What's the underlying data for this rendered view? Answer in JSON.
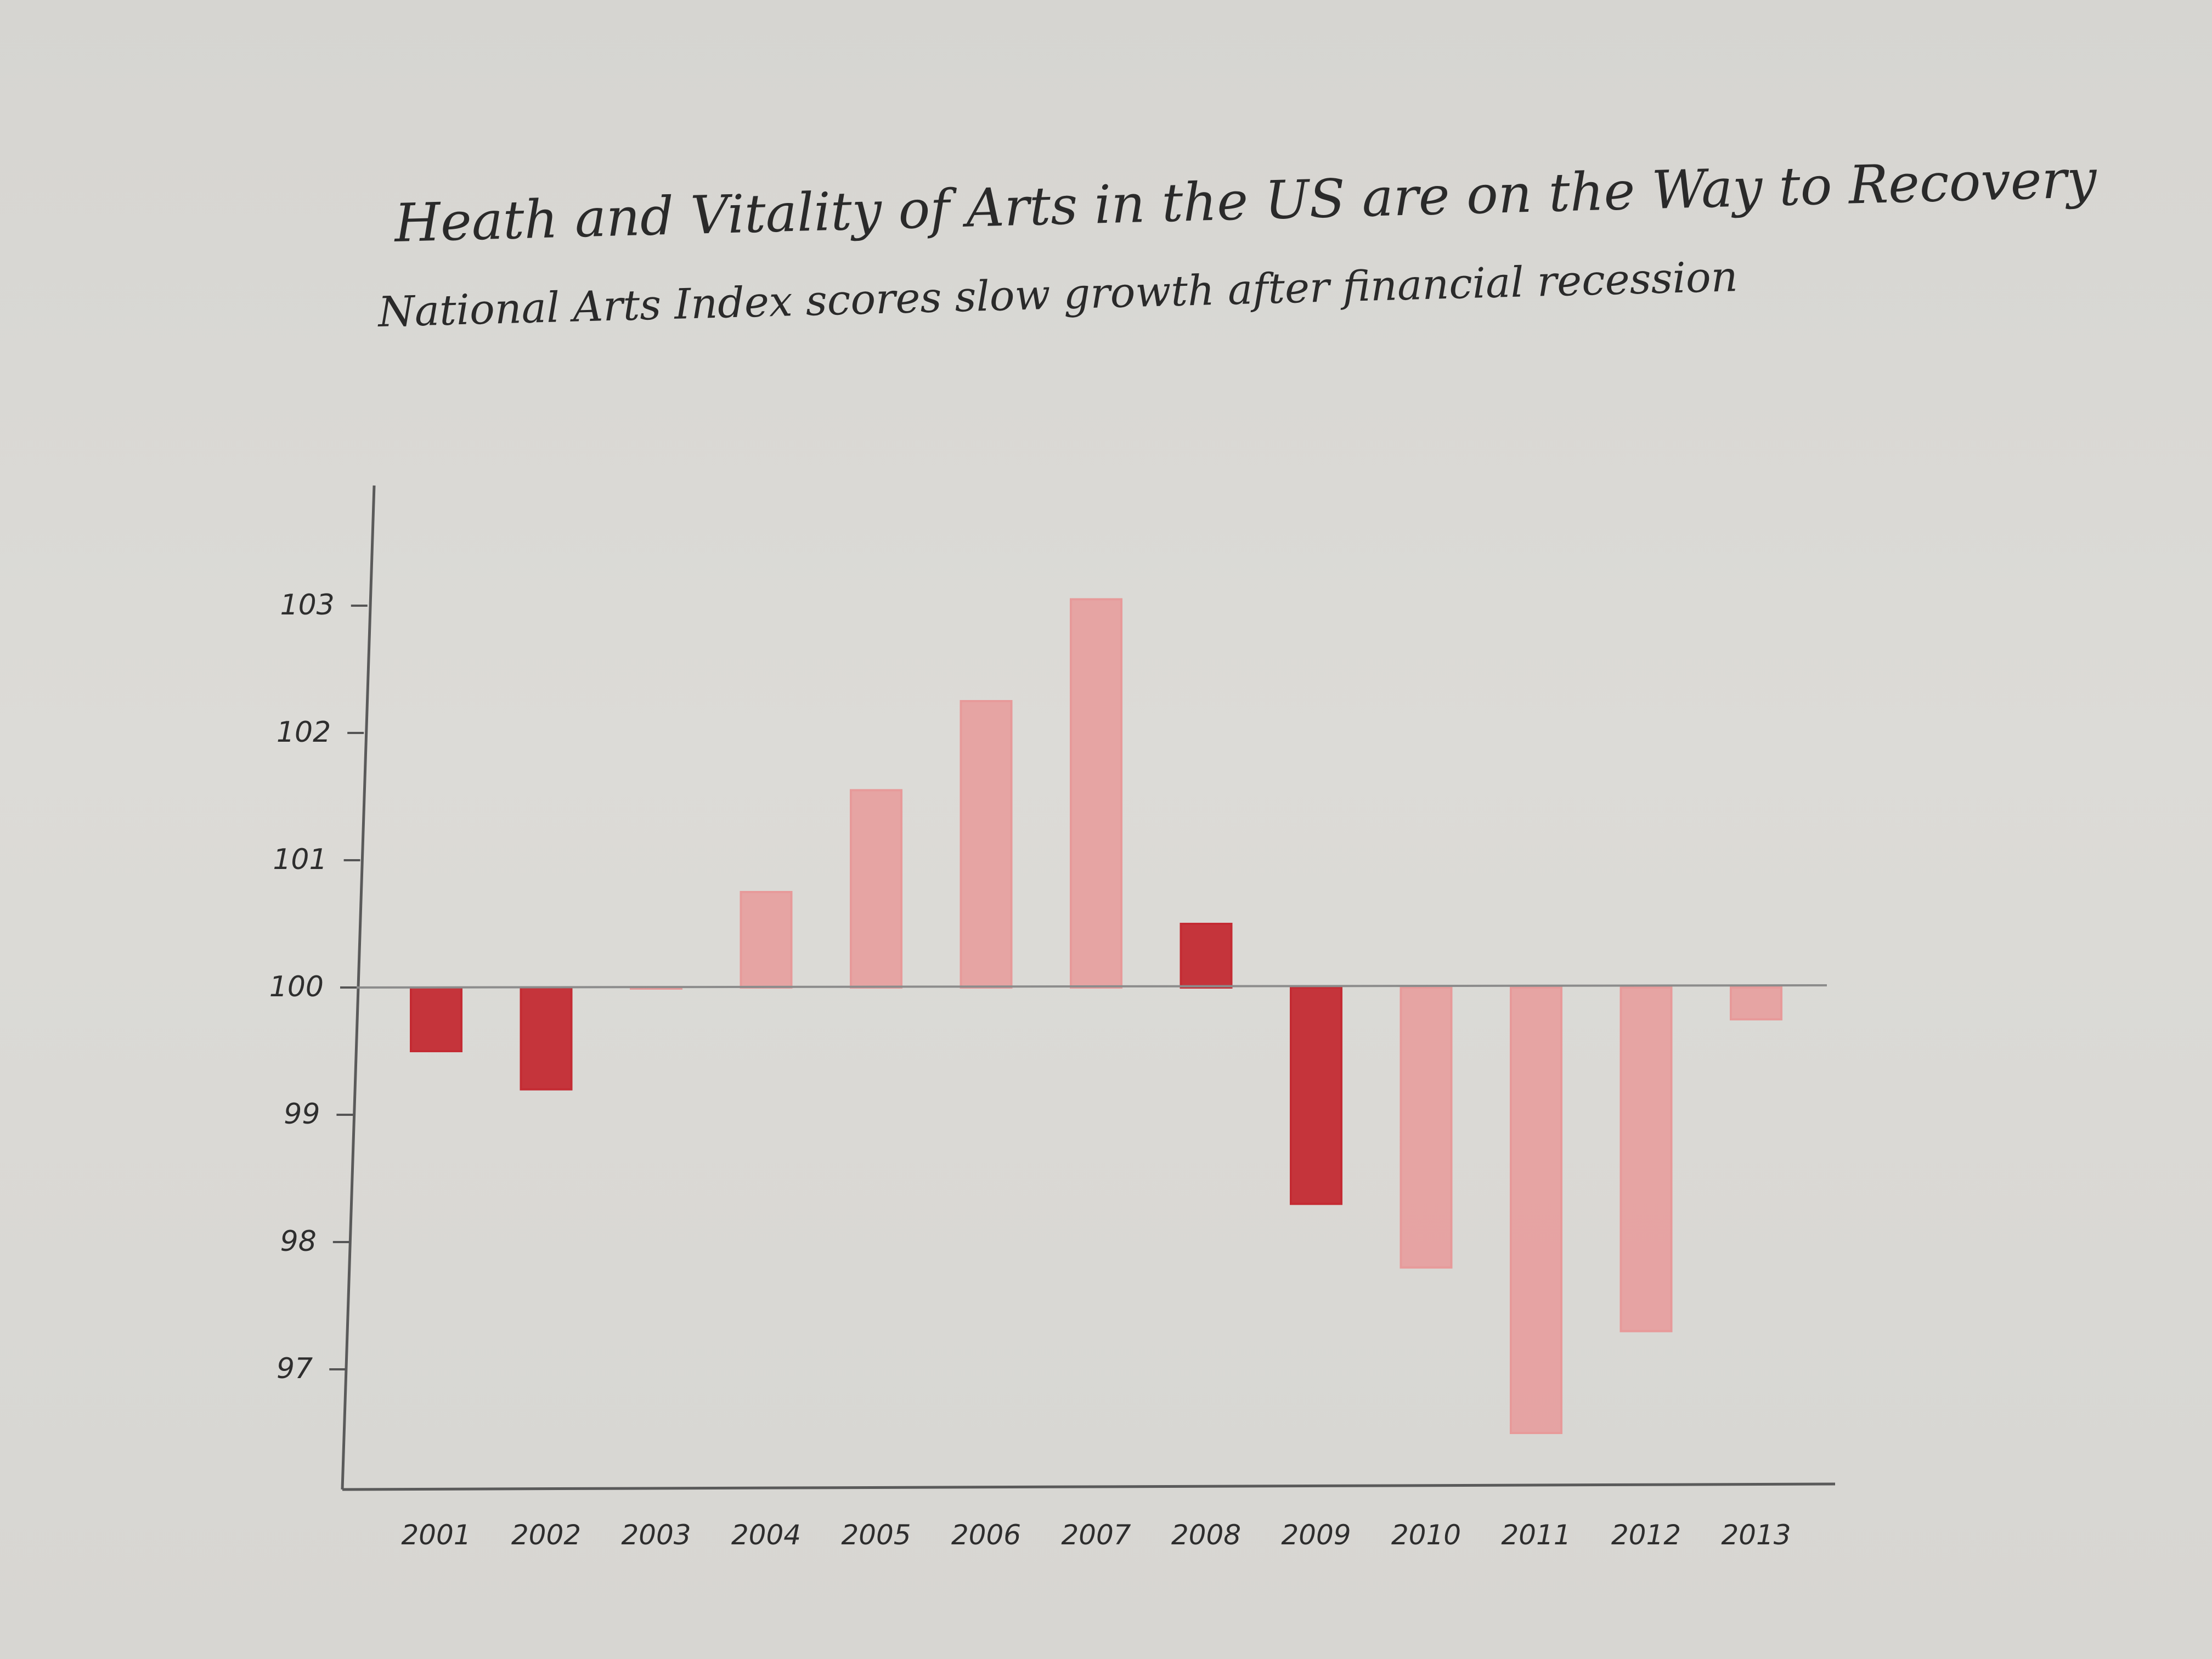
{
  "chart_data": {
    "type": "bar",
    "title": "Heath and Vitality of Arts in the US are on the Way to Recovery",
    "subtitle": "National Arts Index scores slow growth after financial recession",
    "xlabel": "",
    "ylabel": "",
    "baseline": 100,
    "ylim": [
      96.1,
      104
    ],
    "yticks": [
      "103",
      "102",
      "101",
      "100",
      "99",
      "98",
      "97"
    ],
    "ytick_values": [
      103,
      102,
      101,
      100,
      99,
      98,
      97
    ],
    "categories": [
      "2001",
      "2002",
      "2003",
      "2004",
      "2005",
      "2006",
      "2007",
      "2008",
      "2009",
      "2010",
      "2011",
      "2012",
      "2013"
    ],
    "values": [
      99.5,
      99.2,
      100.0,
      100.75,
      101.55,
      102.25,
      103.05,
      100.5,
      98.3,
      97.8,
      96.5,
      97.3,
      99.75
    ],
    "colors": {
      "dark": "#c42b33",
      "light": "#e79a9a",
      "axis": "#555555",
      "baseline": "#8c8c8c"
    },
    "bar_shades": [
      "dark",
      "dark",
      "light",
      "light",
      "light",
      "light",
      "light",
      "dark",
      "dark",
      "light",
      "light",
      "light",
      "light"
    ],
    "grid": false,
    "legend": "none"
  }
}
